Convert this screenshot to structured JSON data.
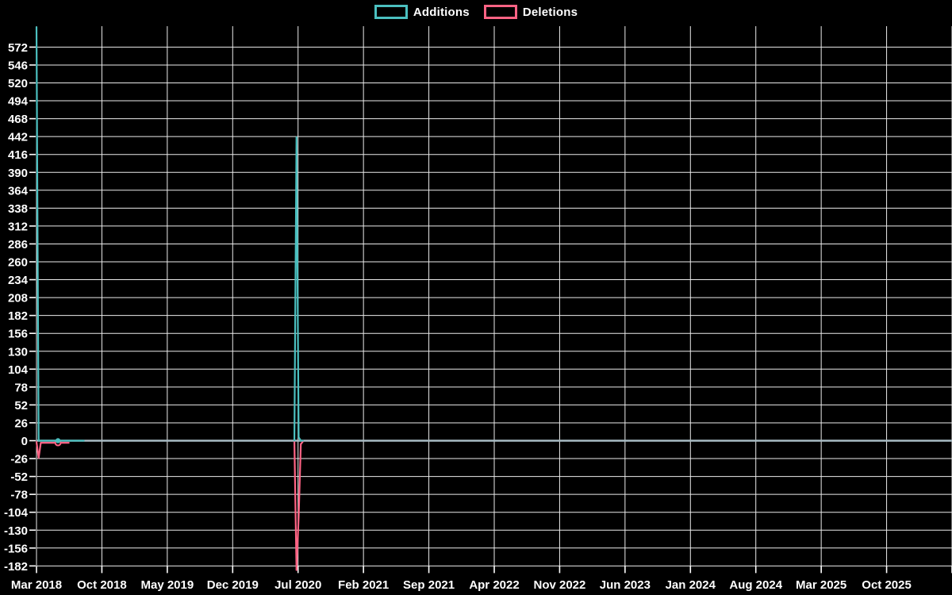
{
  "page": {
    "background": "#000000"
  },
  "legend": {
    "items": [
      {
        "label": "Additions",
        "color": "#4bc0c0"
      },
      {
        "label": "Deletions",
        "color": "#ff6384"
      }
    ]
  },
  "chart_data": {
    "type": "line",
    "title": "",
    "xlabel": "",
    "ylabel": "",
    "legend_position": "top-center",
    "grid": true,
    "x_axis": {
      "unit": "weeks",
      "tick_labels": [
        "Mar 2018",
        "Oct 2018",
        "May 2019",
        "Dec 2019",
        "Jul 2020",
        "Feb 2021",
        "Sep 2021",
        "Apr 2022",
        "Nov 2022",
        "Jun 2023",
        "Jan 2024",
        "Aug 2024",
        "Mar 2025",
        "Oct 2025"
      ],
      "gridline_count": 15,
      "weeks_per_interval": 30.43
    },
    "y_axis": {
      "tick_step": 26,
      "min": -188,
      "max": 601,
      "tick_labels": [
        572,
        546,
        520,
        494,
        468,
        442,
        416,
        390,
        364,
        338,
        312,
        286,
        260,
        234,
        208,
        182,
        156,
        130,
        104,
        78,
        52,
        26,
        0,
        -26,
        -52,
        -78,
        -104,
        -130,
        -156,
        -182
      ]
    },
    "series": [
      {
        "name": "Additions",
        "color": "#4bc0c0",
        "segments": [
          [
            [
              0,
              601
            ],
            [
              1,
              0
            ],
            [
              2,
              0
            ],
            [
              3,
              0
            ],
            [
              4,
              0
            ],
            [
              5,
              0
            ],
            [
              6,
              0
            ],
            [
              7,
              0
            ],
            [
              8,
              0
            ],
            [
              9,
              0
            ],
            [
              10,
              0
            ],
            [
              11,
              0
            ],
            [
              12,
              0
            ],
            [
              13,
              0
            ],
            [
              14,
              0
            ],
            [
              15,
              0
            ],
            [
              16,
              0
            ],
            [
              17,
              0
            ],
            [
              18,
              0
            ],
            [
              19,
              0
            ],
            [
              20,
              0
            ],
            [
              21,
              0
            ],
            [
              22,
              0
            ]
          ],
          [
            [
              120,
              0
            ],
            [
              121,
              441
            ],
            [
              122,
              5
            ],
            [
              123,
              0
            ],
            [
              124,
              0
            ]
          ]
        ]
      },
      {
        "name": "Deletions",
        "color": "#ff6384",
        "segments": [
          [
            [
              0,
              -2
            ],
            [
              1,
              -25
            ],
            [
              2,
              -3
            ],
            [
              3,
              -3
            ],
            [
              4,
              -3
            ],
            [
              5,
              -3
            ],
            [
              6,
              -3
            ],
            [
              7,
              -3
            ],
            [
              8,
              -3
            ],
            [
              9,
              -3
            ],
            [
              10,
              -3
            ],
            [
              11,
              -3
            ],
            [
              12,
              -3
            ],
            [
              13,
              -3
            ],
            [
              14,
              -3
            ],
            [
              15,
              -3
            ]
          ],
          [
            [
              120,
              -1
            ],
            [
              121,
              -188
            ],
            [
              122,
              -110
            ],
            [
              123,
              -5
            ],
            [
              124,
              -1
            ]
          ]
        ]
      }
    ],
    "markers": [
      {
        "series": "Additions",
        "week": 10,
        "value": 0,
        "style": "filled",
        "color": "#4bc0c0"
      },
      {
        "series": "Deletions",
        "week": 10,
        "value": -3,
        "style": "open",
        "color": "#ff6384"
      }
    ],
    "colors": {
      "background": "#000000",
      "grid": "#ebebeb",
      "zero_axis_line": "#a8bcc4",
      "tick_text": "#ffffff",
      "additions": "#4bc0c0",
      "deletions": "#ff6384"
    }
  }
}
